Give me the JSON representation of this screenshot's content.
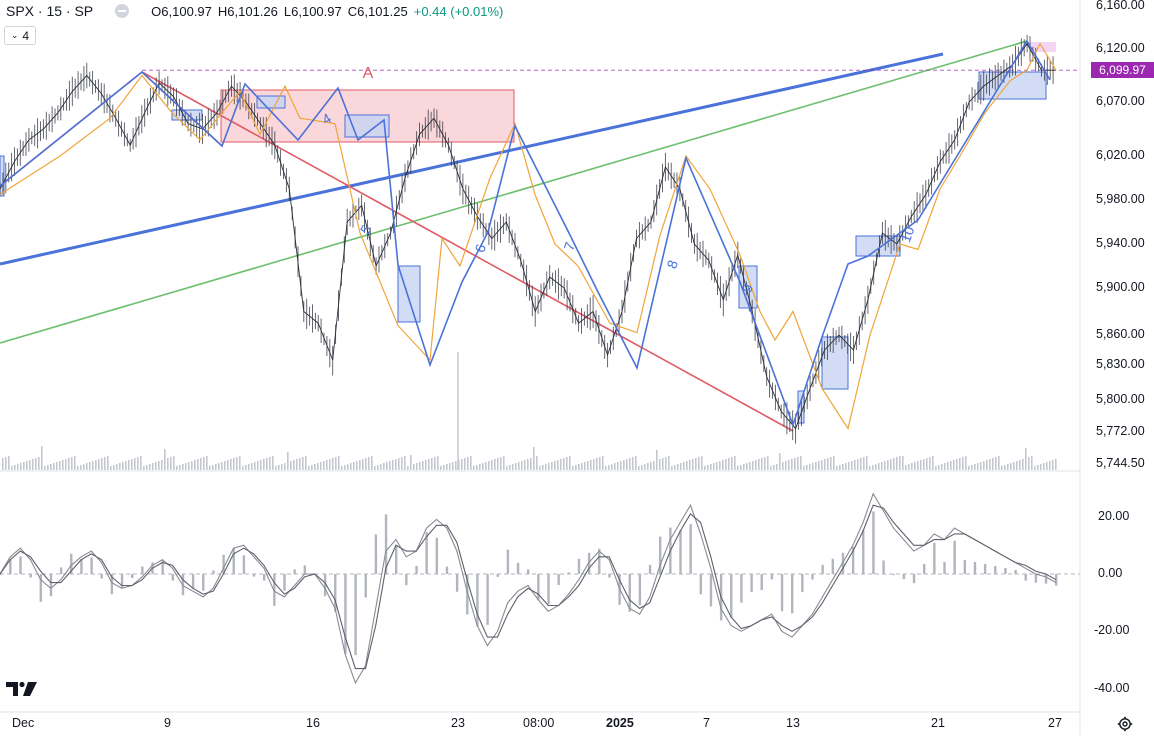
{
  "header": {
    "symbol": "SPX · 15 · SP",
    "open_label": "O",
    "open": "6,100.97",
    "high_label": "H",
    "high": "6,101.26",
    "low_label": "L",
    "low": "6,100.97",
    "close_label": "C",
    "close": "6,101.25",
    "change": "+0.44 (+0.01%)",
    "indicator_count": "4"
  },
  "colors": {
    "blue": "#4a72d9",
    "red": "#e05a66",
    "green": "#6cbf6c",
    "orange": "#f0a53a",
    "pink_box": "#f8c9cd",
    "blue_box": "#c7d3f2",
    "price_tag": "#9c27b0",
    "candle": "#2a2e39"
  },
  "chart_data": [
    {
      "type": "line",
      "title": "SPX · 15 · SP",
      "y_ticks": [
        "6,160.00",
        "6,120.00",
        "6,070.00",
        "6,020.00",
        "5,980.00",
        "5,940.00",
        "5,900.00",
        "5,860.00",
        "5,830.00",
        "5,800.00",
        "5,772.00",
        "5,744.50"
      ],
      "x_ticks": [
        "Dec",
        "9",
        "16",
        "23",
        "08:00",
        "2025",
        "7",
        "13",
        "21",
        "27"
      ],
      "last_price": "6,099.97",
      "annotations": [
        "A",
        "4",
        "5",
        "6",
        "7",
        "8",
        "9",
        "10"
      ],
      "series": [
        {
          "values": [
            5990,
            6015,
            6035,
            6045,
            6060,
            6080,
            6095,
            6078,
            6055,
            6030,
            6060,
            6088,
            6075,
            6050,
            6045,
            6060,
            6085,
            6070,
            6050,
            6030,
            5990,
            5880,
            5870,
            5835,
            5960,
            5975,
            5920,
            5950,
            6000,
            6040,
            6055,
            6030,
            5990,
            5965,
            5945,
            5960,
            5925,
            5880,
            5910,
            5900,
            5870,
            5880,
            5840,
            5880,
            5945,
            5960,
            6010,
            5990,
            5940,
            5925,
            5890,
            5930,
            5880,
            5820,
            5790,
            5775,
            5810,
            5845,
            5860,
            5845,
            5890,
            5950,
            5940,
            5965,
            5985,
            6015,
            6035,
            6070,
            6085,
            6095,
            6105,
            6125,
            6100,
            6100
          ]
        },
        {
          "values": [
            5985,
            6020,
            6055,
            6095,
            6060,
            6035,
            6060,
            6080,
            6040,
            6085,
            6055,
            6050,
            5950,
            5868,
            5835,
            5945,
            5920,
            6000,
            6050,
            5985,
            5940,
            5920,
            5870,
            5862,
            5948,
            6020,
            5990,
            5930,
            5880,
            5855,
            5880,
            5810,
            5775,
            5860,
            5940,
            5935,
            5990,
            6020,
            6060,
            6090,
            6100,
            6125,
            6100
          ]
        }
      ]
    },
    {
      "type": "line",
      "y_ticks": [
        "20.00",
        "0.00",
        "-20.00",
        "-40.00"
      ],
      "ylim": [
        -45,
        30
      ],
      "series": [
        {
          "values": [
            0,
            6,
            9,
            5,
            -2,
            -5,
            -2,
            3,
            6,
            8,
            4,
            -3,
            -5,
            -4,
            -1,
            3,
            5,
            2,
            -4,
            -6,
            -8,
            -5,
            2,
            9,
            10,
            6,
            2,
            -6,
            -8,
            -4,
            0,
            0,
            -5,
            -12,
            -28,
            -38,
            -32,
            -12,
            8,
            12,
            6,
            8,
            16,
            19,
            16,
            8,
            -6,
            -18,
            -25,
            -20,
            -10,
            -6,
            -4,
            -9,
            -13,
            -11,
            -7,
            -2,
            4,
            8,
            5,
            -5,
            -12,
            -14,
            -8,
            3,
            12,
            18,
            24,
            14,
            2,
            -12,
            -18,
            -20,
            -18,
            -16,
            -14,
            -20,
            -22,
            -18,
            -14,
            -8,
            -2,
            4,
            10,
            18,
            28,
            22,
            16,
            12,
            8,
            10,
            14,
            12,
            16,
            14,
            12,
            10,
            8,
            6,
            4,
            2,
            0,
            -1,
            -3
          ]
        },
        {
          "values": [
            0,
            5,
            8,
            6,
            1,
            -3,
            -3,
            1,
            5,
            7,
            5,
            -1,
            -4,
            -4,
            -2,
            2,
            4,
            3,
            -2,
            -5,
            -7,
            -6,
            0,
            7,
            9,
            7,
            3,
            -3,
            -7,
            -5,
            -1,
            0,
            -3,
            -9,
            -22,
            -33,
            -33,
            -18,
            2,
            10,
            8,
            8,
            13,
            17,
            17,
            11,
            -2,
            -14,
            -22,
            -22,
            -14,
            -8,
            -5,
            -7,
            -11,
            -11,
            -8,
            -4,
            2,
            6,
            6,
            -2,
            -9,
            -12,
            -10,
            -1,
            8,
            15,
            21,
            18,
            6,
            -8,
            -15,
            -19,
            -18,
            -16,
            -15,
            -18,
            -20,
            -18,
            -15,
            -10,
            -4,
            2,
            8,
            15,
            24,
            23,
            18,
            14,
            10,
            10,
            12,
            12,
            14,
            14,
            12,
            10,
            8,
            6,
            4,
            3,
            1,
            0,
            -2
          ]
        }
      ]
    }
  ]
}
